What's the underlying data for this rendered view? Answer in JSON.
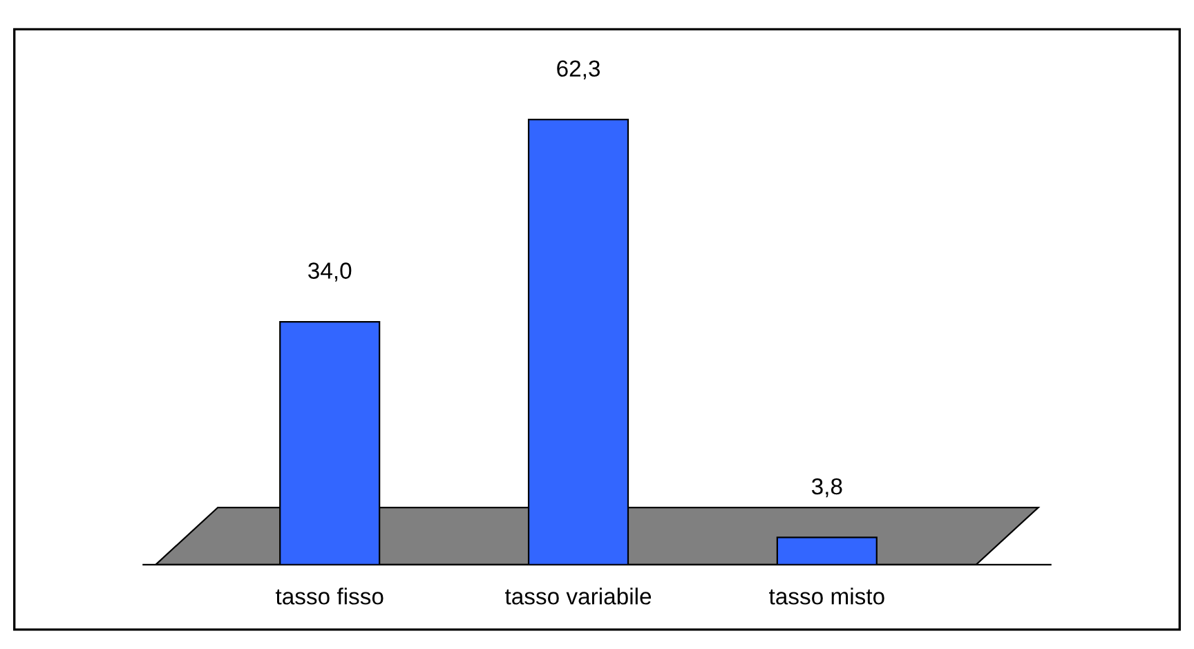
{
  "chart_data": {
    "type": "bar",
    "categories": [
      "tasso fisso",
      "tasso variabile",
      "tasso misto"
    ],
    "values": [
      34.0,
      62.3,
      3.8
    ],
    "value_labels": [
      "34,0",
      "62,3",
      "3,8"
    ],
    "color": "#3366ff",
    "grid": false
  }
}
